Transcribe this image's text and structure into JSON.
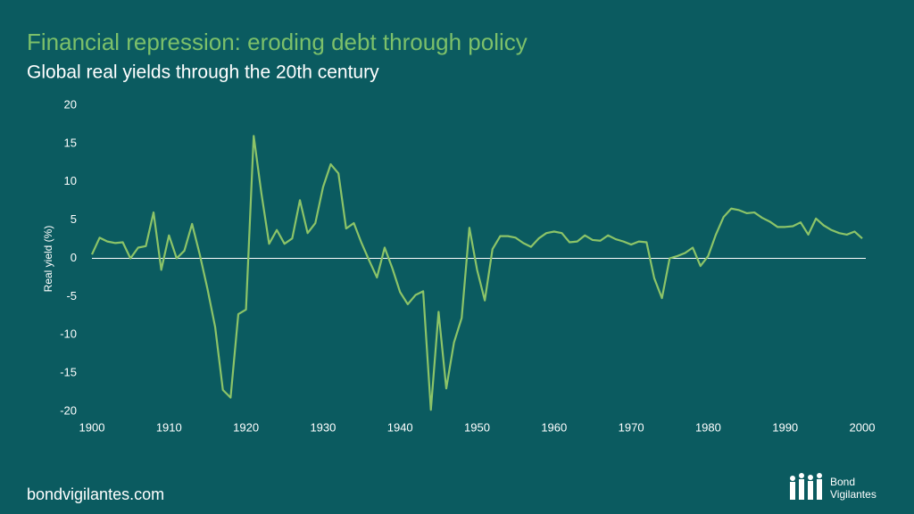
{
  "chart_data": {
    "type": "line",
    "title": "Financial repression: eroding debt through policy",
    "subtitle": "Global real yields through the 20th century",
    "y_label": "Real yield (%)",
    "x": [
      1900,
      1901,
      1902,
      1903,
      1904,
      1905,
      1906,
      1907,
      1908,
      1909,
      1910,
      1911,
      1912,
      1913,
      1914,
      1915,
      1916,
      1917,
      1918,
      1919,
      1920,
      1921,
      1922,
      1923,
      1924,
      1925,
      1926,
      1927,
      1928,
      1929,
      1930,
      1931,
      1932,
      1933,
      1934,
      1935,
      1936,
      1937,
      1938,
      1939,
      1940,
      1941,
      1942,
      1943,
      1944,
      1945,
      1946,
      1947,
      1948,
      1949,
      1950,
      1951,
      1952,
      1953,
      1954,
      1955,
      1956,
      1957,
      1958,
      1959,
      1960,
      1961,
      1962,
      1963,
      1964,
      1965,
      1966,
      1967,
      1968,
      1969,
      1970,
      1971,
      1972,
      1973,
      1974,
      1975,
      1976,
      1977,
      1978,
      1979,
      1980,
      1981,
      1982,
      1983,
      1984,
      1985,
      1986,
      1987,
      1988,
      1989,
      1990,
      1991,
      1992,
      1993,
      1994,
      1995,
      1996,
      1997,
      1998,
      1999,
      2000
    ],
    "values": [
      0.5,
      2.7,
      2.2,
      2.0,
      2.1,
      0.0,
      1.4,
      1.6,
      6.0,
      -1.5,
      3.0,
      0.0,
      1.0,
      4.5,
      0.5,
      -4.0,
      -9.0,
      -17.2,
      -18.2,
      -7.3,
      -6.7,
      16.0,
      8.5,
      1.9,
      3.7,
      1.9,
      2.6,
      7.6,
      3.3,
      4.6,
      9.3,
      12.3,
      11.1,
      3.9,
      4.6,
      2.0,
      -0.3,
      -2.5,
      1.4,
      -1.3,
      -4.4,
      -6.0,
      -4.8,
      -4.3,
      -19.8,
      -7.0,
      -17.0,
      -11.0,
      -7.8,
      4.0,
      -1.5,
      -5.5,
      1.2,
      2.9,
      2.9,
      2.7,
      2.0,
      1.5,
      2.6,
      3.3,
      3.5,
      3.3,
      2.1,
      2.2,
      3.0,
      2.4,
      2.3,
      3.0,
      2.5,
      2.2,
      1.8,
      2.2,
      2.1,
      -2.6,
      -5.2,
      0.0,
      0.3,
      0.7,
      1.4,
      -1.0,
      0.3,
      3.1,
      5.4,
      6.5,
      6.3,
      5.9,
      6.0,
      5.3,
      4.8,
      4.1,
      4.1,
      4.2,
      4.7,
      3.1,
      5.2,
      4.3,
      3.7,
      3.3,
      3.1,
      3.5,
      2.6
    ],
    "color": "#8cc468",
    "xlim": [
      1900,
      2000
    ],
    "xticks": [
      1900,
      1910,
      1920,
      1930,
      1940,
      1950,
      1960,
      1970,
      1980,
      1990,
      2000
    ],
    "ylim": [
      -20,
      20
    ],
    "yticks": [
      -20,
      -15,
      -10,
      -5,
      0,
      5,
      10,
      15,
      20
    ],
    "zero_line": true
  },
  "footer": {
    "website": "bondvigilantes.com",
    "logo": [
      "Bond",
      "Vigilantes"
    ]
  }
}
